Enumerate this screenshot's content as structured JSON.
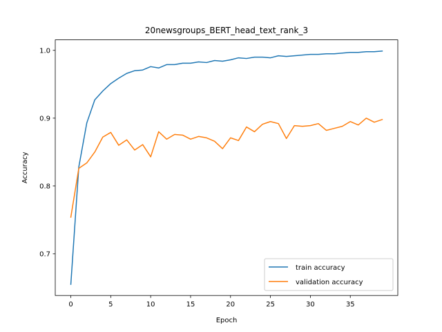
{
  "chart_data": {
    "type": "line",
    "title": "20newsgroups_BERT_head_text_rank_3",
    "xlabel": "Epoch",
    "ylabel": "Accuracy",
    "xlim": [
      -1.95,
      40.95
    ],
    "ylim": [
      0.6385,
      1.0155
    ],
    "xticks": [
      0,
      5,
      10,
      15,
      20,
      25,
      30,
      35
    ],
    "yticks": [
      0.7,
      0.8,
      0.9,
      1.0
    ],
    "ytick_labels": [
      "0.7",
      "0.8",
      "0.9",
      "1.0"
    ],
    "grid": false,
    "legend_position": "bottom-right",
    "x": [
      0,
      1,
      2,
      3,
      4,
      5,
      6,
      7,
      8,
      9,
      10,
      11,
      12,
      13,
      14,
      15,
      16,
      17,
      18,
      19,
      20,
      21,
      22,
      23,
      24,
      25,
      26,
      27,
      28,
      29,
      30,
      31,
      32,
      33,
      34,
      35,
      36,
      37,
      38,
      39
    ],
    "series": [
      {
        "name": "train accuracy",
        "color": "#1f77b4",
        "values": [
          0.655,
          0.828,
          0.893,
          0.927,
          0.94,
          0.951,
          0.959,
          0.966,
          0.97,
          0.971,
          0.976,
          0.974,
          0.979,
          0.979,
          0.981,
          0.981,
          0.983,
          0.982,
          0.985,
          0.984,
          0.986,
          0.989,
          0.988,
          0.99,
          0.99,
          0.989,
          0.992,
          0.991,
          0.992,
          0.993,
          0.994,
          0.994,
          0.995,
          0.995,
          0.996,
          0.997,
          0.997,
          0.998,
          0.998,
          0.999
        ]
      },
      {
        "name": "validation accuracy",
        "color": "#ff7f0e",
        "values": [
          0.754,
          0.826,
          0.834,
          0.85,
          0.872,
          0.879,
          0.86,
          0.868,
          0.853,
          0.861,
          0.843,
          0.88,
          0.869,
          0.876,
          0.875,
          0.869,
          0.873,
          0.871,
          0.866,
          0.855,
          0.871,
          0.867,
          0.887,
          0.88,
          0.891,
          0.895,
          0.892,
          0.87,
          0.889,
          0.888,
          0.889,
          0.892,
          0.882,
          0.885,
          0.888,
          0.895,
          0.89,
          0.9,
          0.894,
          0.898
        ]
      }
    ]
  }
}
